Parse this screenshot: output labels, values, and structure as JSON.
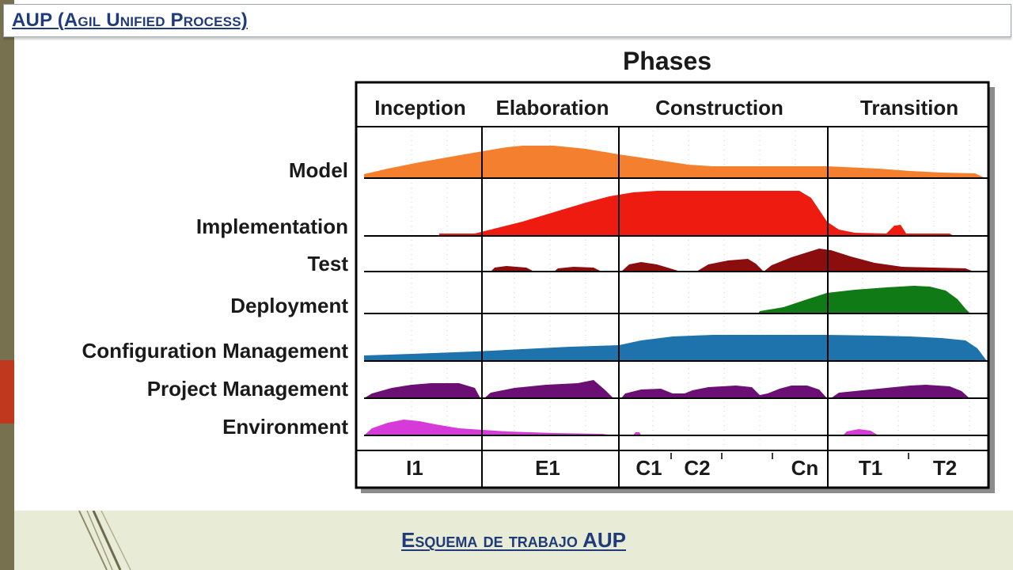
{
  "title": "AUP (Agil Unified Process)",
  "footer": "Esquema de trabajo AUP",
  "diagram": {
    "heading": "Phases",
    "phases": [
      "Inception",
      "Elaboration",
      "Construction",
      "Transition"
    ],
    "disciplines": [
      {
        "label": "Model",
        "color": "#f47f2f"
      },
      {
        "label": "Implementation",
        "color": "#ee1b10"
      },
      {
        "label": "Test",
        "color": "#8b0d0d"
      },
      {
        "label": "Deployment",
        "color": "#0f7a16"
      },
      {
        "label": "Configuration Management",
        "color": "#1e73ad"
      },
      {
        "label": "Project Management",
        "color": "#6b0f74"
      },
      {
        "label": "Environment",
        "color": "#d63ad8"
      }
    ],
    "iterations": [
      "I1",
      "E1",
      "C1",
      "C2",
      "Cn",
      "T1",
      "T2"
    ]
  }
}
